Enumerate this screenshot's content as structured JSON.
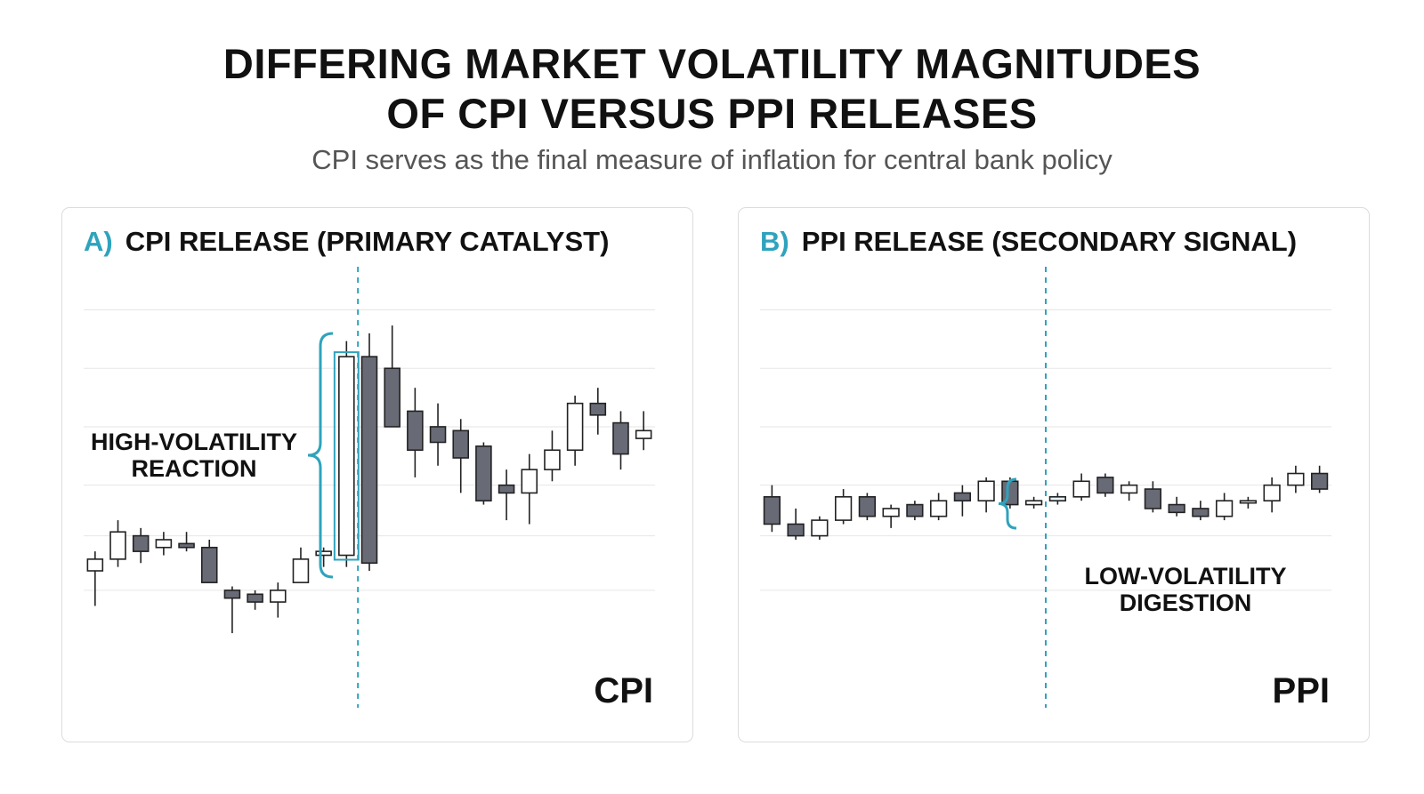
{
  "header": {
    "title_line1": "DIFFERING MARKET VOLATILITY MAGNITUDES",
    "title_line2": "OF CPI VERSUS PPI RELEASES",
    "subtitle": "CPI serves as the final measure of inflation for central bank policy"
  },
  "colors": {
    "accent": "#2fa3bd",
    "bearish_fill": "#686b76",
    "bullish_fill": "#ffffff",
    "highlight_fill": "#e7f4f8",
    "text": "#111111",
    "grid": "#e6e6e6"
  },
  "chart_data": [
    {
      "type": "candlestick",
      "panel_letter": "A)",
      "title": "CPI RELEASE (PRIMARY CATALYST)",
      "corner_label": "CPI",
      "annotation": [
        "HIGH-VOLATILITY",
        "REACTION"
      ],
      "release_index": 12,
      "y_range": [
        0,
        100
      ],
      "gridlines": [
        88,
        73,
        58,
        43,
        30,
        16
      ],
      "candles": [
        {
          "o": 21,
          "h": 26,
          "l": 12,
          "c": 24
        },
        {
          "o": 24,
          "h": 34,
          "l": 22,
          "c": 31
        },
        {
          "o": 30,
          "h": 32,
          "l": 23,
          "c": 26
        },
        {
          "o": 27,
          "h": 31,
          "l": 25,
          "c": 29
        },
        {
          "o": 28,
          "h": 31,
          "l": 26,
          "c": 27
        },
        {
          "o": 27,
          "h": 29,
          "l": 18,
          "c": 18
        },
        {
          "o": 16,
          "h": 17,
          "l": 5,
          "c": 14
        },
        {
          "o": 15,
          "h": 16,
          "l": 11,
          "c": 13
        },
        {
          "o": 13,
          "h": 18,
          "l": 9,
          "c": 16
        },
        {
          "o": 18,
          "h": 27,
          "l": 18,
          "c": 24
        },
        {
          "o": 25,
          "h": 27,
          "l": 22,
          "c": 26
        },
        {
          "o": 25,
          "h": 80,
          "l": 22,
          "c": 76
        },
        {
          "o": 76,
          "h": 82,
          "l": 21,
          "c": 23
        },
        {
          "o": 73,
          "h": 84,
          "l": 58,
          "c": 58
        },
        {
          "o": 62,
          "h": 68,
          "l": 45,
          "c": 52
        },
        {
          "o": 58,
          "h": 64,
          "l": 48,
          "c": 54
        },
        {
          "o": 57,
          "h": 60,
          "l": 41,
          "c": 50
        },
        {
          "o": 53,
          "h": 54,
          "l": 38,
          "c": 39
        },
        {
          "o": 43,
          "h": 47,
          "l": 34,
          "c": 41
        },
        {
          "o": 41,
          "h": 51,
          "l": 33,
          "c": 47
        },
        {
          "o": 47,
          "h": 57,
          "l": 44,
          "c": 52
        },
        {
          "o": 52,
          "h": 66,
          "l": 48,
          "c": 64
        },
        {
          "o": 64,
          "h": 68,
          "l": 56,
          "c": 61
        },
        {
          "o": 59,
          "h": 62,
          "l": 47,
          "c": 51
        },
        {
          "o": 55,
          "h": 62,
          "l": 52,
          "c": 57
        }
      ]
    },
    {
      "type": "candlestick",
      "panel_letter": "B)",
      "title": "PPI RELEASE (SECONDARY SIGNAL)",
      "corner_label": "PPI",
      "annotation": [
        "LOW-VOLATILITY",
        "DIGESTION"
      ],
      "release_index": 12,
      "y_range": [
        0,
        100
      ],
      "gridlines": [
        88,
        73,
        58,
        43,
        30,
        16
      ],
      "candles": [
        {
          "o": 40,
          "h": 43,
          "l": 31,
          "c": 33
        },
        {
          "o": 33,
          "h": 37,
          "l": 29,
          "c": 30
        },
        {
          "o": 30,
          "h": 35,
          "l": 29,
          "c": 34
        },
        {
          "o": 34,
          "h": 42,
          "l": 33,
          "c": 40
        },
        {
          "o": 40,
          "h": 41,
          "l": 34,
          "c": 35
        },
        {
          "o": 35,
          "h": 38,
          "l": 32,
          "c": 37
        },
        {
          "o": 38,
          "h": 39,
          "l": 34,
          "c": 35
        },
        {
          "o": 35,
          "h": 41,
          "l": 34,
          "c": 39
        },
        {
          "o": 41,
          "h": 43,
          "l": 35,
          "c": 39
        },
        {
          "o": 39,
          "h": 45,
          "l": 36,
          "c": 44
        },
        {
          "o": 44,
          "h": 45,
          "l": 37,
          "c": 38
        },
        {
          "o": 38,
          "h": 40,
          "l": 37,
          "c": 39
        },
        {
          "o": 39,
          "h": 41,
          "l": 38,
          "c": 40
        },
        {
          "o": 40,
          "h": 46,
          "l": 39,
          "c": 44
        },
        {
          "o": 45,
          "h": 46,
          "l": 40,
          "c": 41
        },
        {
          "o": 41,
          "h": 44,
          "l": 39,
          "c": 43
        },
        {
          "o": 42,
          "h": 44,
          "l": 36,
          "c": 37
        },
        {
          "o": 38,
          "h": 40,
          "l": 35,
          "c": 36
        },
        {
          "o": 37,
          "h": 39,
          "l": 34,
          "c": 35
        },
        {
          "o": 35,
          "h": 41,
          "l": 34,
          "c": 39
        },
        {
          "o": 39,
          "h": 40,
          "l": 37,
          "c": 39
        },
        {
          "o": 39,
          "h": 45,
          "l": 36,
          "c": 43
        },
        {
          "o": 43,
          "h": 48,
          "l": 41,
          "c": 46
        },
        {
          "o": 46,
          "h": 48,
          "l": 41,
          "c": 42
        }
      ]
    }
  ]
}
